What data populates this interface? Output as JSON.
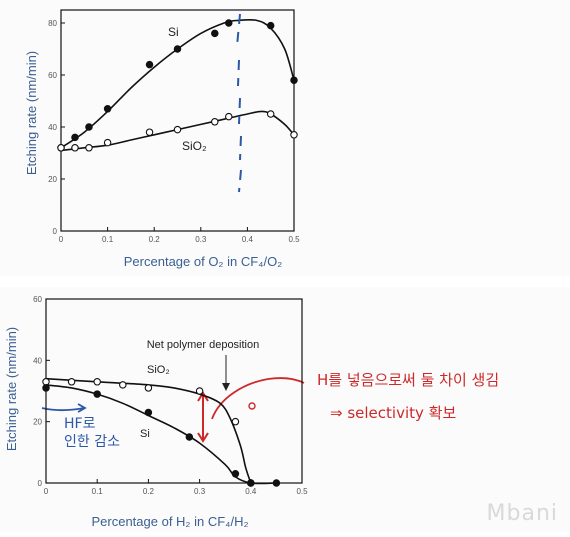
{
  "chart_data": [
    {
      "type": "line",
      "title": "",
      "xlabel": "Percentage of O₂ in CF₄/O₂",
      "ylabel": "Etching rate (nm/min)",
      "xlim": [
        0,
        0.5
      ],
      "ylim": [
        0,
        85
      ],
      "x_ticks": [
        "0",
        "0.1",
        "0.2",
        "0.3",
        "0.4",
        "0.5"
      ],
      "y_ticks": [
        "0",
        "20",
        "40",
        "60",
        "80"
      ],
      "grid": false,
      "series": [
        {
          "name": "Si",
          "marker": "filled",
          "x": [
            0.0,
            0.03,
            0.06,
            0.1,
            0.19,
            0.25,
            0.33,
            0.36,
            0.45,
            0.5
          ],
          "y": [
            32,
            36,
            40,
            47,
            64,
            70,
            76,
            80,
            79,
            58
          ],
          "curve_x": [
            0.0,
            0.05,
            0.1,
            0.15,
            0.2,
            0.25,
            0.3,
            0.35,
            0.38,
            0.42,
            0.45,
            0.48,
            0.5
          ],
          "curve_y": [
            32,
            38,
            46,
            55,
            63,
            70,
            76,
            80,
            81,
            81,
            78,
            70,
            58
          ]
        },
        {
          "name": "SiO₂",
          "marker": "open",
          "x": [
            0.0,
            0.03,
            0.06,
            0.1,
            0.19,
            0.25,
            0.33,
            0.36,
            0.45,
            0.5
          ],
          "y": [
            32,
            32,
            32,
            34,
            38,
            39,
            42,
            44,
            45,
            37
          ],
          "curve_x": [
            0.0,
            0.05,
            0.1,
            0.15,
            0.2,
            0.25,
            0.3,
            0.35,
            0.4,
            0.43,
            0.45,
            0.48,
            0.5
          ],
          "curve_y": [
            31,
            32,
            33,
            35,
            37,
            39,
            41,
            43,
            45,
            46,
            45,
            41,
            37
          ]
        }
      ],
      "annotations": [
        {
          "text": "Si",
          "x": 0.22,
          "y": 76
        },
        {
          "text": "SiO₂",
          "x": 0.28,
          "y": 30
        }
      ]
    },
    {
      "type": "line",
      "title": "",
      "xlabel": "Percentage of H₂ in CF₄/H₂",
      "ylabel": "Etching rate (nm/min)",
      "xlim": [
        0,
        0.5
      ],
      "ylim": [
        0,
        60
      ],
      "x_ticks": [
        "0",
        "0.1",
        "0.2",
        "0.3",
        "0.4",
        "0.5"
      ],
      "y_ticks": [
        "0",
        "20",
        "40",
        "60"
      ],
      "grid": false,
      "series": [
        {
          "name": "SiO₂",
          "marker": "open",
          "x": [
            0.0,
            0.05,
            0.1,
            0.15,
            0.2,
            0.3,
            0.37,
            0.4
          ],
          "y": [
            33,
            33,
            33,
            32,
            31,
            30,
            20,
            0
          ],
          "curve_x": [
            0.0,
            0.1,
            0.2,
            0.25,
            0.3,
            0.34,
            0.36,
            0.38,
            0.39,
            0.4
          ],
          "curve_y": [
            34,
            33,
            32,
            31,
            29,
            26,
            21,
            12,
            5,
            0
          ]
        },
        {
          "name": "Si",
          "marker": "filled",
          "x": [
            0.0,
            0.1,
            0.2,
            0.28,
            0.37,
            0.4,
            0.45
          ],
          "y": [
            31,
            29,
            23,
            15,
            3,
            0,
            0
          ],
          "curve_x": [
            0.0,
            0.05,
            0.1,
            0.15,
            0.2,
            0.25,
            0.3,
            0.35,
            0.37,
            0.4,
            0.45
          ],
          "curve_y": [
            32,
            31,
            29,
            26,
            22,
            18,
            13,
            6,
            2,
            0,
            0
          ]
        }
      ],
      "annotations": [
        {
          "text": "Net polymer deposition",
          "x": 0.37,
          "y": 45
        },
        {
          "text": "SiO₂",
          "x": 0.24,
          "y": 38
        },
        {
          "text": "Si",
          "x": 0.2,
          "y": 16
        }
      ]
    }
  ],
  "handwritten_notes": {
    "red_line1": "H를 넣음으로써 둘 차이 생김",
    "red_line2": "⇒ selectivity 확보",
    "blue_line1": "HF로",
    "blue_line2": "인한 감소"
  },
  "watermark": "Mbani",
  "colors": {
    "ink": "#111111",
    "axis_title": "#3a5f92",
    "red_note": "#cc2a2a",
    "blue_note": "#2c58a8"
  }
}
